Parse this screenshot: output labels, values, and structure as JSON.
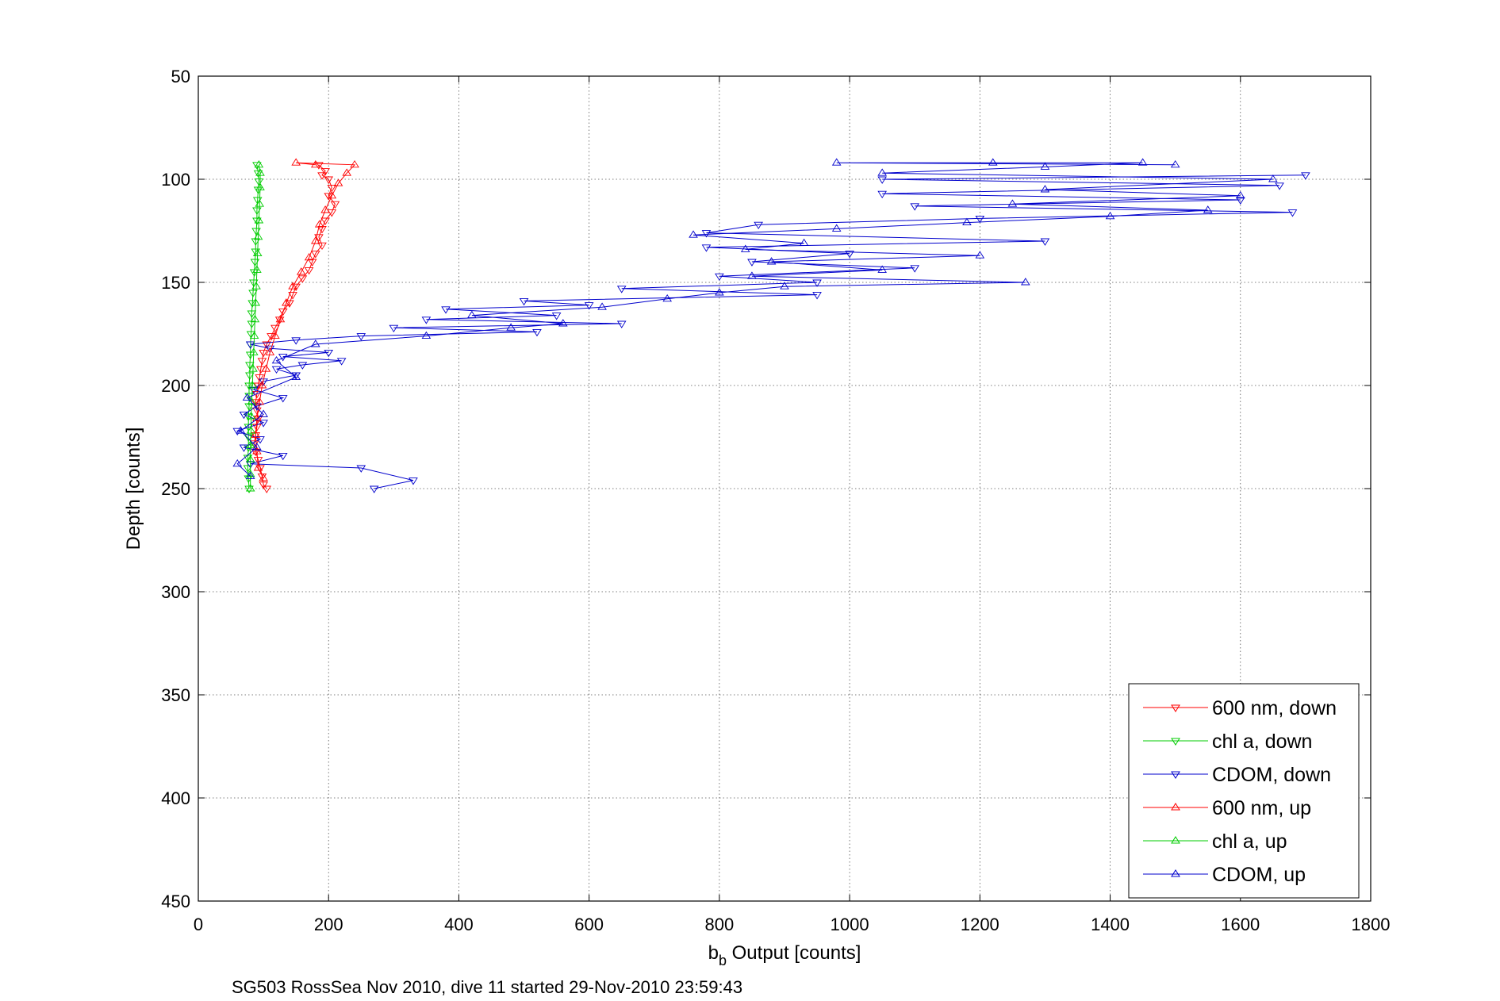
{
  "chart_data": {
    "type": "line",
    "xlabel_main": "b",
    "xlabel_sub": "b",
    "xlabel_rest": " Output [counts]",
    "ylabel": "Depth [counts]",
    "caption": "SG503 RossSea Nov 2010, dive 11 started 29-Nov-2010 23:59:43",
    "xlim": [
      0,
      1800
    ],
    "ylim": [
      50,
      450
    ],
    "y_reversed": true,
    "grid": true,
    "legend_position": "bottom-right",
    "xticks": [
      0,
      200,
      400,
      600,
      800,
      1000,
      1200,
      1400,
      1600,
      1800
    ],
    "yticks": [
      50,
      100,
      150,
      200,
      250,
      300,
      350,
      400,
      450
    ],
    "series": [
      {
        "name": "600 nm, down",
        "color": "#ff0000",
        "marker": "triangle-down",
        "points": [
          [
            185,
            93
          ],
          [
            195,
            96
          ],
          [
            190,
            98
          ],
          [
            200,
            100
          ],
          [
            205,
            104
          ],
          [
            200,
            108
          ],
          [
            210,
            112
          ],
          [
            205,
            116
          ],
          [
            195,
            120
          ],
          [
            190,
            124
          ],
          [
            185,
            128
          ],
          [
            190,
            132
          ],
          [
            180,
            136
          ],
          [
            175,
            140
          ],
          [
            170,
            144
          ],
          [
            160,
            148
          ],
          [
            150,
            152
          ],
          [
            145,
            156
          ],
          [
            140,
            160
          ],
          [
            130,
            164
          ],
          [
            125,
            168
          ],
          [
            118,
            172
          ],
          [
            112,
            176
          ],
          [
            105,
            180
          ],
          [
            100,
            184
          ],
          [
            98,
            188
          ],
          [
            96,
            192
          ],
          [
            94,
            196
          ],
          [
            92,
            200
          ],
          [
            90,
            204
          ],
          [
            88,
            208
          ],
          [
            90,
            212
          ],
          [
            92,
            216
          ],
          [
            90,
            220
          ],
          [
            88,
            224
          ],
          [
            86,
            228
          ],
          [
            88,
            232
          ],
          [
            92,
            236
          ],
          [
            95,
            240
          ],
          [
            98,
            244
          ],
          [
            100,
            248
          ],
          [
            105,
            250
          ]
        ]
      },
      {
        "name": "chl a, down",
        "color": "#00cc00",
        "marker": "triangle-down",
        "points": [
          [
            90,
            93
          ],
          [
            92,
            97
          ],
          [
            93,
            101
          ],
          [
            92,
            105
          ],
          [
            91,
            110
          ],
          [
            90,
            115
          ],
          [
            90,
            120
          ],
          [
            89,
            125
          ],
          [
            88,
            130
          ],
          [
            88,
            135
          ],
          [
            87,
            140
          ],
          [
            86,
            145
          ],
          [
            85,
            150
          ],
          [
            84,
            155
          ],
          [
            83,
            160
          ],
          [
            82,
            165
          ],
          [
            82,
            170
          ],
          [
            81,
            175
          ],
          [
            80,
            180
          ],
          [
            80,
            185
          ],
          [
            79,
            190
          ],
          [
            79,
            195
          ],
          [
            78,
            200
          ],
          [
            78,
            205
          ],
          [
            78,
            210
          ],
          [
            77,
            215
          ],
          [
            77,
            220
          ],
          [
            77,
            225
          ],
          [
            77,
            230
          ],
          [
            76,
            235
          ],
          [
            76,
            240
          ],
          [
            77,
            245
          ],
          [
            78,
            250
          ]
        ]
      },
      {
        "name": "CDOM, down",
        "color": "#0000cc",
        "marker": "triangle-down",
        "points": [
          [
            1700,
            98
          ],
          [
            1050,
            100
          ],
          [
            1660,
            103
          ],
          [
            1050,
            107
          ],
          [
            1600,
            110
          ],
          [
            1100,
            113
          ],
          [
            1680,
            116
          ],
          [
            1200,
            119
          ],
          [
            860,
            122
          ],
          [
            780,
            126
          ],
          [
            1300,
            130
          ],
          [
            780,
            133
          ],
          [
            1000,
            136
          ],
          [
            850,
            140
          ],
          [
            1100,
            143
          ],
          [
            800,
            147
          ],
          [
            950,
            150
          ],
          [
            650,
            153
          ],
          [
            950,
            156
          ],
          [
            500,
            159
          ],
          [
            600,
            161
          ],
          [
            380,
            163
          ],
          [
            550,
            166
          ],
          [
            350,
            168
          ],
          [
            650,
            170
          ],
          [
            300,
            172
          ],
          [
            520,
            174
          ],
          [
            250,
            176
          ],
          [
            150,
            178
          ],
          [
            80,
            180
          ],
          [
            110,
            182
          ],
          [
            200,
            184
          ],
          [
            130,
            186
          ],
          [
            220,
            188
          ],
          [
            160,
            190
          ],
          [
            120,
            192
          ],
          [
            150,
            195
          ],
          [
            100,
            198
          ],
          [
            85,
            202
          ],
          [
            130,
            206
          ],
          [
            90,
            210
          ],
          [
            70,
            214
          ],
          [
            100,
            218
          ],
          [
            60,
            222
          ],
          [
            95,
            226
          ],
          [
            70,
            230
          ],
          [
            130,
            234
          ],
          [
            80,
            238
          ],
          [
            250,
            240
          ],
          [
            330,
            246
          ],
          [
            270,
            250
          ]
        ]
      },
      {
        "name": "600 nm, up",
        "color": "#ff0000",
        "marker": "triangle-up",
        "points": [
          [
            100,
            245
          ],
          [
            92,
            240
          ],
          [
            90,
            232
          ],
          [
            88,
            224
          ],
          [
            90,
            216
          ],
          [
            94,
            208
          ],
          [
            98,
            200
          ],
          [
            104,
            192
          ],
          [
            110,
            184
          ],
          [
            118,
            176
          ],
          [
            126,
            168
          ],
          [
            135,
            160
          ],
          [
            145,
            152
          ],
          [
            158,
            145
          ],
          [
            170,
            138
          ],
          [
            180,
            130
          ],
          [
            186,
            122
          ],
          [
            195,
            115
          ],
          [
            205,
            108
          ],
          [
            215,
            102
          ],
          [
            228,
            97
          ],
          [
            240,
            93
          ],
          [
            150,
            92
          ],
          [
            180,
            93
          ]
        ]
      },
      {
        "name": "chl a, up",
        "color": "#00cc00",
        "marker": "triangle-up",
        "points": [
          [
            80,
            250
          ],
          [
            80,
            243
          ],
          [
            80,
            236
          ],
          [
            80,
            229
          ],
          [
            81,
            222
          ],
          [
            81,
            215
          ],
          [
            82,
            208
          ],
          [
            83,
            200
          ],
          [
            84,
            192
          ],
          [
            85,
            184
          ],
          [
            86,
            176
          ],
          [
            87,
            168
          ],
          [
            88,
            160
          ],
          [
            89,
            152
          ],
          [
            90,
            144
          ],
          [
            91,
            136
          ],
          [
            92,
            128
          ],
          [
            93,
            120
          ],
          [
            94,
            112
          ],
          [
            95,
            104
          ],
          [
            95,
            97
          ],
          [
            93,
            93
          ]
        ]
      },
      {
        "name": "CDOM, up",
        "color": "#0000cc",
        "marker": "triangle-up",
        "points": [
          [
            80,
            244
          ],
          [
            60,
            238
          ],
          [
            90,
            230
          ],
          [
            65,
            222
          ],
          [
            100,
            214
          ],
          [
            75,
            206
          ],
          [
            150,
            196
          ],
          [
            120,
            188
          ],
          [
            180,
            180
          ],
          [
            350,
            176
          ],
          [
            480,
            172
          ],
          [
            560,
            170
          ],
          [
            420,
            166
          ],
          [
            620,
            162
          ],
          [
            720,
            158
          ],
          [
            800,
            155
          ],
          [
            900,
            152
          ],
          [
            1270,
            150
          ],
          [
            850,
            147
          ],
          [
            1050,
            144
          ],
          [
            880,
            140
          ],
          [
            1200,
            137
          ],
          [
            840,
            134
          ],
          [
            930,
            131
          ],
          [
            760,
            127
          ],
          [
            980,
            124
          ],
          [
            1180,
            121
          ],
          [
            1400,
            118
          ],
          [
            1550,
            115
          ],
          [
            1250,
            112
          ],
          [
            1600,
            108
          ],
          [
            1300,
            105
          ],
          [
            1650,
            100
          ],
          [
            1050,
            97
          ],
          [
            1300,
            94
          ],
          [
            1450,
            92
          ],
          [
            1220,
            92
          ],
          [
            980,
            92
          ],
          [
            1500,
            93
          ]
        ]
      }
    ]
  }
}
